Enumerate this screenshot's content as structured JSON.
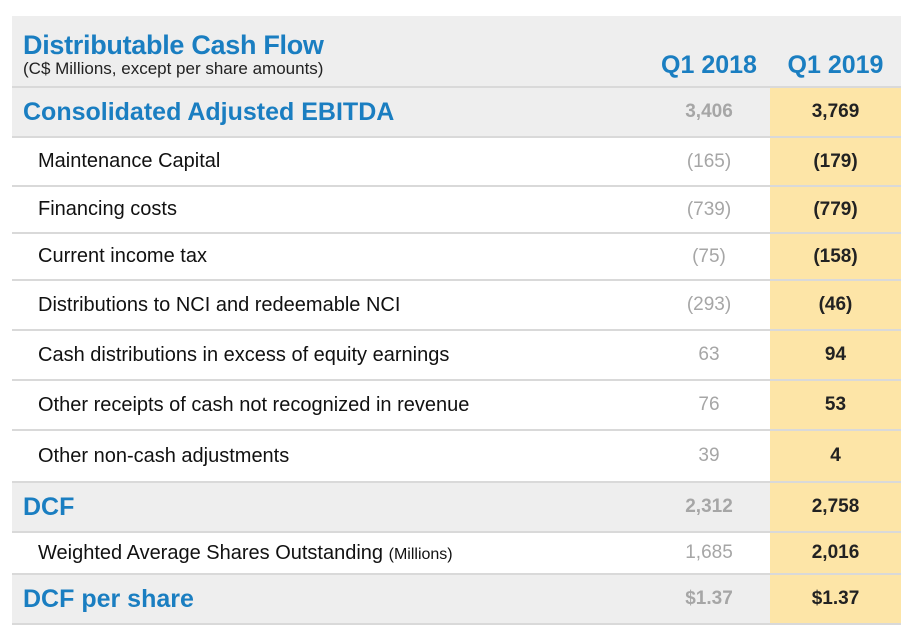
{
  "header": {
    "title": "Distributable Cash Flow",
    "subtitle": "(C$ Millions, except per share amounts)",
    "col_2018": "Q1 2018",
    "col_2019": "Q1 2019"
  },
  "rows": [
    {
      "type": "section",
      "label": "Consolidated Adjusted EBITDA",
      "q1_2018": "3,406",
      "q1_2019": "3,769"
    },
    {
      "type": "item",
      "label": "Maintenance Capital",
      "q1_2018": "(165)",
      "q1_2019": "(179)"
    },
    {
      "type": "item",
      "label": "Financing costs",
      "q1_2018": "(739)",
      "q1_2019": "(779)"
    },
    {
      "type": "item",
      "label": "Current income tax",
      "q1_2018": "(75)",
      "q1_2019": "(158)"
    },
    {
      "type": "item",
      "label": "Distributions to NCI and redeemable NCI",
      "q1_2018": "(293)",
      "q1_2019": "(46)"
    },
    {
      "type": "item",
      "label": "Cash distributions in excess of equity earnings",
      "q1_2018": "63",
      "q1_2019": "94"
    },
    {
      "type": "item",
      "label": "Other receipts of cash not recognized in revenue",
      "q1_2018": "76",
      "q1_2019": "53"
    },
    {
      "type": "item",
      "label": "Other non-cash adjustments",
      "q1_2018": "39",
      "q1_2019": "4"
    },
    {
      "type": "section",
      "label": "DCF",
      "q1_2018": "2,312",
      "q1_2019": "2,758"
    },
    {
      "type": "item",
      "label": "Weighted Average Shares Outstanding",
      "label_suffix": "(Millions)",
      "q1_2018": "1,685",
      "q1_2019": "2,016"
    },
    {
      "type": "section",
      "label": "DCF per share",
      "q1_2018": "$1.37",
      "q1_2019": "$1.37"
    }
  ],
  "colors": {
    "accent_blue": "#1a7ec1",
    "highlight_column": "#fde5a7",
    "shaded_row": "#eeeeee",
    "muted_value": "#a6a6a6"
  }
}
